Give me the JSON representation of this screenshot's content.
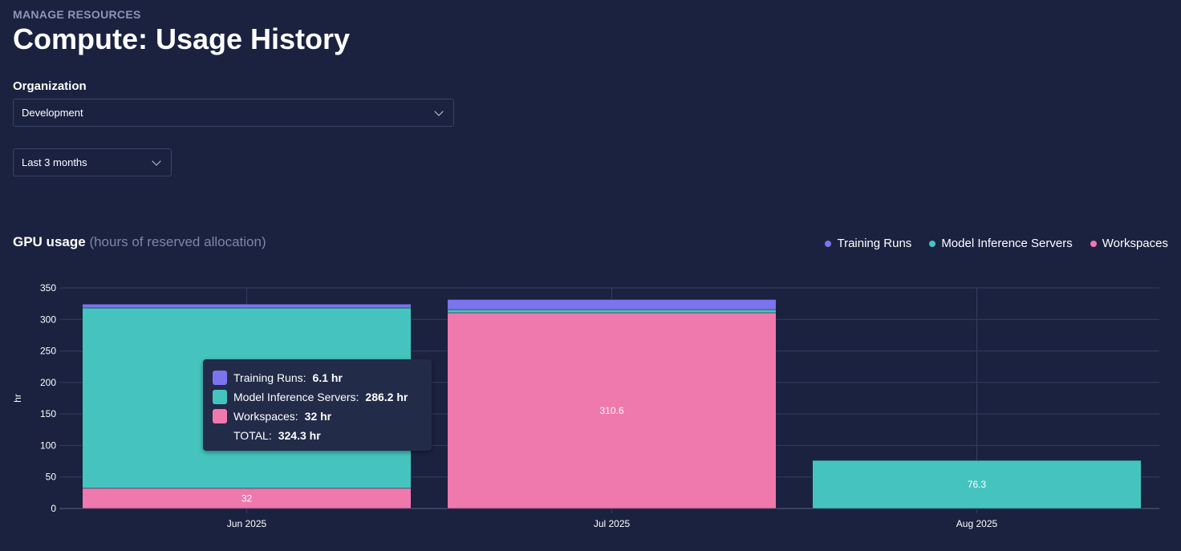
{
  "header": {
    "eyebrow": "MANAGE RESOURCES",
    "title": "Compute: Usage History"
  },
  "filters": {
    "org_label": "Organization",
    "org_value": "Development",
    "range_value": "Last 3 months"
  },
  "chart_header": {
    "title": "GPU usage",
    "subtitle": "(hours of reserved allocation)"
  },
  "legend": [
    {
      "label": "Training Runs",
      "color": "#7b74ec"
    },
    {
      "label": "Model Inference Servers",
      "color": "#45c4bf"
    },
    {
      "label": "Workspaces",
      "color": "#ef78ad"
    }
  ],
  "tooltip": {
    "rows": [
      {
        "label": "Training Runs:",
        "value": "6.1 hr",
        "color": "#7b74ec"
      },
      {
        "label": "Model Inference Servers:",
        "value": "286.2 hr",
        "color": "#45c4bf"
      },
      {
        "label": "Workspaces:",
        "value": "32 hr",
        "color": "#ef78ad"
      }
    ],
    "total_label": "TOTAL:",
    "total_value": "324.3 hr"
  },
  "chart_data": {
    "type": "bar",
    "stacked": true,
    "categories": [
      "Jun 2025",
      "Jul 2025",
      "Aug 2025"
    ],
    "series": [
      {
        "name": "Workspaces",
        "values": [
          32,
          310.6,
          0
        ],
        "color": "#ef78ad"
      },
      {
        "name": "Model Inference Servers",
        "values": [
          286.2,
          5,
          76.3
        ],
        "color": "#45c4bf"
      },
      {
        "name": "Training Runs",
        "values": [
          6.1,
          16,
          0
        ],
        "color": "#7b74ec"
      }
    ],
    "data_labels": [
      {
        "category": "Jun 2025",
        "series": "Workspaces",
        "text": "32"
      },
      {
        "category": "Jul 2025",
        "series": "Workspaces",
        "text": "310.6"
      },
      {
        "category": "Aug 2025",
        "series": "Model Inference Servers",
        "text": "76.3"
      }
    ],
    "ylabel": "hr",
    "ylim": [
      0,
      350
    ],
    "yticks": [
      0,
      50,
      100,
      150,
      200,
      250,
      300,
      350
    ],
    "grid": true,
    "legend_position": "top-right"
  }
}
